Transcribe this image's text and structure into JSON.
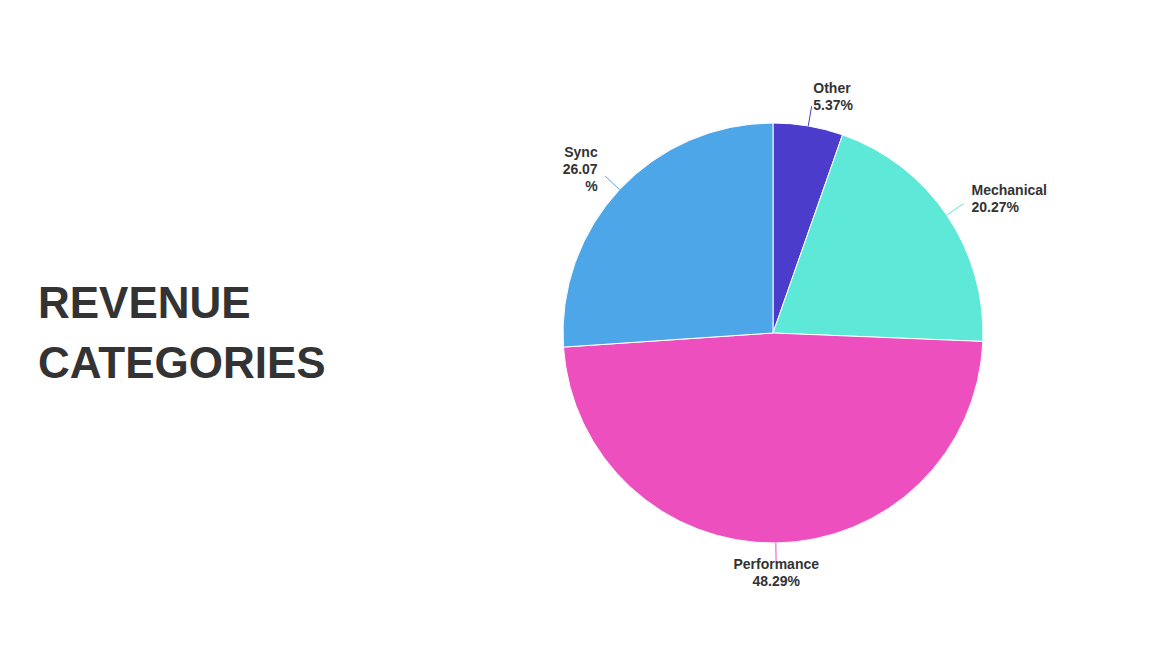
{
  "chart_data": {
    "type": "pie",
    "title": "REVENUE\nCATEGORIES",
    "categories": [
      "Other",
      "Mechanical",
      "Performance",
      "Sync"
    ],
    "values": [
      5.37,
      20.27,
      48.29,
      26.07
    ],
    "value_labels": [
      "5.37%",
      "20.27%",
      "48.29%",
      "26.07\n%"
    ],
    "colors": [
      "#4b3ccc",
      "#5ee8d8",
      "#ee4fbe",
      "#4da6e8"
    ],
    "data_labels": true
  }
}
